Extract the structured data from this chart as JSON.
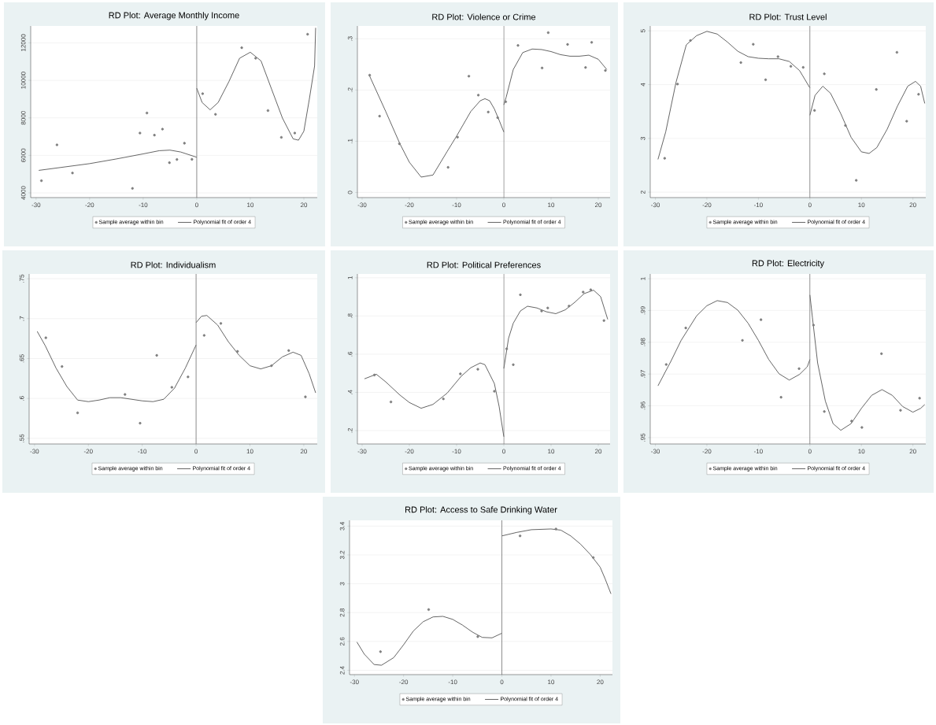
{
  "chart_data": [
    {
      "type": "scatter",
      "title": "RD Plot: Average Monthly Income",
      "xlim": [
        -31,
        22.5
      ],
      "ylim": [
        3750,
        12900
      ],
      "xticks": [
        -30,
        -20,
        -10,
        0,
        10,
        20
      ],
      "yticks": [
        4000,
        6000,
        8000,
        10000,
        12000
      ],
      "grid": "y",
      "legend": "bottom",
      "ref_lines": [
        {
          "axis": "x",
          "value": 0,
          "color": "#6e6e6e"
        }
      ],
      "series": [
        {
          "name": "Sample average within bin",
          "marker": "circle",
          "color": "#7f7f7f",
          "x": [
            -29.0,
            -26.1,
            -23.2,
            -12.0,
            -10.6,
            -9.3,
            -7.9,
            -6.4,
            -5.1,
            -3.7,
            -2.3,
            -0.9,
            1.1,
            3.5,
            8.4,
            11.0,
            13.3,
            15.8,
            18.3,
            20.7
          ],
          "values": [
            4650,
            6560,
            5060,
            4240,
            7190,
            8260,
            7080,
            7400,
            5610,
            5780,
            6650,
            5790,
            9290,
            8190,
            11740,
            11180,
            8390,
            6960,
            7190,
            12460
          ]
        },
        {
          "name": "Polynomial fit of order 4",
          "type": "line",
          "marker": "none",
          "line_style": "solid",
          "color": "#3f3f3f",
          "x": [
            -29.5,
            -20,
            -15,
            -10,
            -7,
            -5,
            -3,
            0
          ],
          "values": [
            5200,
            5560,
            5810,
            6080,
            6250,
            6280,
            6180,
            5900
          ]
        },
        {
          "type": "line",
          "marker": "none",
          "line_style": "solid",
          "color": "#3f3f3f",
          "x": [
            0,
            1,
            2.5,
            4,
            6,
            8,
            10,
            12,
            14,
            16,
            18,
            19,
            20,
            21,
            22,
            22.2
          ],
          "values": [
            9580,
            8820,
            8430,
            8820,
            9930,
            11180,
            11500,
            11040,
            9510,
            7990,
            6880,
            6810,
            7290,
            8960,
            10760,
            12800
          ]
        }
      ]
    },
    {
      "type": "scatter",
      "title": "RD Plot: Violence or Crime",
      "xlim": [
        -31,
        22.5
      ],
      "ylim": [
        -0.01,
        0.325
      ],
      "xticks": [
        -30,
        -20,
        -10,
        0,
        10,
        20
      ],
      "yticks": [
        0,
        {
          "value": 0.1,
          "label": ".1"
        },
        {
          "value": 0.2,
          "label": ".2"
        },
        {
          "value": 0.3,
          "label": ".3"
        }
      ],
      "grid": "y",
      "legend": "bottom",
      "ref_lines": [
        {
          "axis": "x",
          "value": 0,
          "color": "#6e6e6e"
        }
      ],
      "series": [
        {
          "name": "Sample average within bin",
          "marker": "circle",
          "color": "#7f7f7f",
          "x": [
            -28.4,
            -26.3,
            -22.1,
            -11.8,
            -9.8,
            -7.4,
            -5.4,
            -3.3,
            -1.3,
            0.4,
            3.0,
            8.1,
            9.4,
            13.5,
            17.3,
            18.6,
            21.5
          ],
          "values": [
            0.229,
            0.149,
            0.095,
            0.049,
            0.108,
            0.227,
            0.19,
            0.157,
            0.146,
            0.177,
            0.287,
            0.243,
            0.312,
            0.289,
            0.244,
            0.293,
            0.238
          ]
        },
        {
          "name": "Polynomial fit of order 4",
          "type": "line",
          "marker": "none",
          "line_style": "solid",
          "color": "#3f3f3f",
          "x": [
            -28.5,
            -25,
            -22,
            -20,
            -17.5,
            -15,
            -12,
            -10,
            -7,
            -5,
            -4,
            -3,
            -2,
            -1,
            0
          ],
          "values": [
            0.229,
            0.158,
            0.095,
            0.059,
            0.03,
            0.034,
            0.08,
            0.11,
            0.158,
            0.179,
            0.183,
            0.179,
            0.163,
            0.141,
            0.118
          ]
        },
        {
          "type": "line",
          "marker": "none",
          "line_style": "solid",
          "color": "#3f3f3f",
          "x": [
            0,
            0.5,
            2,
            4,
            6,
            8,
            10,
            12,
            14,
            16,
            18,
            20,
            21.8
          ],
          "values": [
            0.171,
            0.186,
            0.24,
            0.273,
            0.28,
            0.279,
            0.275,
            0.269,
            0.266,
            0.266,
            0.268,
            0.26,
            0.24
          ]
        }
      ]
    },
    {
      "type": "scatter",
      "title": "RD Plot: Trust Level",
      "xlim": [
        -31,
        22.5
      ],
      "ylim": [
        1.9,
        5.09
      ],
      "xticks": [
        -30,
        -20,
        -10,
        0,
        10,
        20
      ],
      "yticks": [
        2,
        3,
        4,
        5
      ],
      "grid": "y",
      "legend": "bottom",
      "ref_lines": [
        {
          "axis": "x",
          "value": 0,
          "color": "#6e6e6e"
        }
      ],
      "series": [
        {
          "name": "Sample average within bin",
          "marker": "circle",
          "color": "#7f7f7f",
          "x": [
            -28.2,
            -25.7,
            -23.2,
            -13.4,
            -11.0,
            -8.6,
            -6.2,
            -3.7,
            -1.3,
            0.9,
            2.8,
            6.9,
            9.0,
            12.9,
            16.9,
            18.8,
            21.1
          ],
          "values": [
            2.63,
            4.01,
            4.82,
            4.41,
            4.75,
            4.09,
            4.52,
            4.34,
            4.32,
            3.52,
            4.2,
            3.24,
            2.22,
            3.91,
            4.6,
            3.32,
            3.82
          ]
        },
        {
          "name": "Polynomial fit of order 4",
          "type": "line",
          "marker": "none",
          "line_style": "solid",
          "color": "#3f3f3f",
          "x": [
            -29.5,
            -28,
            -26,
            -24,
            -22,
            -20,
            -18,
            -16,
            -14,
            -12,
            -10,
            -8,
            -6,
            -4,
            -2,
            0
          ],
          "values": [
            2.61,
            3.12,
            4.04,
            4.74,
            4.91,
            4.99,
            4.94,
            4.79,
            4.62,
            4.52,
            4.49,
            4.48,
            4.48,
            4.43,
            4.26,
            3.94
          ]
        },
        {
          "type": "line",
          "marker": "none",
          "line_style": "solid",
          "color": "#3f3f3f",
          "x": [
            0,
            1,
            2.5,
            4,
            6,
            8,
            10,
            11.5,
            13,
            15,
            17,
            19,
            20.5,
            21.5,
            22.3
          ],
          "values": [
            3.43,
            3.8,
            3.97,
            3.84,
            3.46,
            3.02,
            2.75,
            2.72,
            2.83,
            3.17,
            3.6,
            3.97,
            4.06,
            3.97,
            3.65
          ]
        }
      ]
    },
    {
      "type": "scatter",
      "title": "RD Plot: Individualism",
      "xlim": [
        -31,
        22.5
      ],
      "ylim": [
        0.543,
        0.756
      ],
      "xticks": [
        -30,
        -20,
        -10,
        0,
        10,
        20
      ],
      "yticks": [
        {
          "value": 0.55,
          "label": ".55"
        },
        {
          "value": 0.6,
          "label": ".6"
        },
        {
          "value": 0.65,
          "label": ".65"
        },
        {
          "value": 0.7,
          "label": ".7"
        },
        {
          "value": 0.75,
          "label": ".75"
        }
      ],
      "grid": "y",
      "legend": "bottom",
      "ref_lines": [
        {
          "axis": "x",
          "value": 0,
          "color": "#6e6e6e"
        }
      ],
      "series": [
        {
          "name": "Sample average within bin",
          "marker": "circle",
          "color": "#7f7f7f",
          "x": [
            -27.9,
            -24.9,
            -22.0,
            -13.2,
            -10.4,
            -7.3,
            -4.5,
            -1.5,
            1.5,
            4.6,
            7.7,
            14.0,
            17.2,
            20.3
          ],
          "values": [
            0.676,
            0.64,
            0.582,
            0.605,
            0.569,
            0.654,
            0.614,
            0.627,
            0.679,
            0.694,
            0.659,
            0.641,
            0.66,
            0.602
          ]
        },
        {
          "name": "Polynomial fit of order 4",
          "type": "line",
          "marker": "none",
          "line_style": "solid",
          "color": "#3f3f3f",
          "x": [
            -29.5,
            -28,
            -26,
            -24,
            -22,
            -20,
            -18,
            -16,
            -14,
            -12,
            -10,
            -8,
            -6,
            -4,
            -2,
            0
          ],
          "values": [
            0.684,
            0.666,
            0.638,
            0.615,
            0.598,
            0.596,
            0.598,
            0.601,
            0.601,
            0.599,
            0.597,
            0.596,
            0.599,
            0.613,
            0.638,
            0.667
          ]
        },
        {
          "type": "line",
          "marker": "none",
          "line_style": "solid",
          "color": "#3f3f3f",
          "x": [
            0,
            1,
            2,
            4,
            6,
            8,
            10,
            12,
            14,
            16,
            18,
            19.5,
            21,
            22.2
          ],
          "values": [
            0.695,
            0.703,
            0.704,
            0.692,
            0.671,
            0.654,
            0.641,
            0.637,
            0.641,
            0.652,
            0.658,
            0.654,
            0.631,
            0.607
          ]
        }
      ]
    },
    {
      "type": "scatter",
      "title": "RD Plot: Political Preferences",
      "xlim": [
        -31,
        22.5
      ],
      "ylim": [
        0.13,
        1.02
      ],
      "xticks": [
        -30,
        -20,
        -10,
        0,
        10,
        20
      ],
      "yticks": [
        {
          "value": 0.2,
          "label": ".2"
        },
        {
          "value": 0.4,
          "label": ".4"
        },
        {
          "value": 0.6,
          "label": ".6"
        },
        {
          "value": 0.8,
          "label": ".8"
        },
        1
      ],
      "grid": "y",
      "legend": "bottom",
      "ref_lines": [
        {
          "axis": "x",
          "value": 0,
          "color": "#6e6e6e"
        }
      ],
      "series": [
        {
          "name": "Sample average within bin",
          "marker": "circle",
          "color": "#7f7f7f",
          "x": [
            -27.4,
            -23.9,
            -12.8,
            -9.2,
            -5.5,
            -2.0,
            0.6,
            2.0,
            3.5,
            8.0,
            9.3,
            13.8,
            16.8,
            18.4,
            21.2
          ],
          "values": [
            0.491,
            0.35,
            0.366,
            0.497,
            0.521,
            0.406,
            0.628,
            0.545,
            0.911,
            0.826,
            0.842,
            0.852,
            0.925,
            0.937,
            0.776
          ]
        },
        {
          "name": "Polynomial fit of order 4",
          "type": "line",
          "marker": "none",
          "line_style": "solid",
          "color": "#3f3f3f",
          "x": [
            -29.5,
            -27,
            -25,
            -22,
            -20,
            -17.5,
            -15,
            -12,
            -9,
            -7,
            -5,
            -4,
            -2,
            -1,
            0
          ],
          "values": [
            0.471,
            0.495,
            0.455,
            0.386,
            0.347,
            0.317,
            0.337,
            0.396,
            0.485,
            0.529,
            0.554,
            0.545,
            0.446,
            0.327,
            0.168
          ]
        },
        {
          "type": "line",
          "marker": "none",
          "line_style": "solid",
          "color": "#3f3f3f",
          "x": [
            0,
            1,
            2,
            3.5,
            5,
            7,
            9,
            11,
            13,
            15,
            17,
            19,
            20.5,
            22
          ],
          "values": [
            0.525,
            0.683,
            0.762,
            0.826,
            0.851,
            0.842,
            0.822,
            0.812,
            0.832,
            0.871,
            0.917,
            0.935,
            0.901,
            0.782
          ]
        }
      ]
    },
    {
      "type": "scatter",
      "title": "RD Plot: Electricity",
      "xlim": [
        -31,
        22.5
      ],
      "ylim": [
        0.948,
        1.0015
      ],
      "xticks": [
        -30,
        -20,
        -10,
        0,
        10,
        20
      ],
      "yticks": [
        {
          "value": 0.95,
          "label": ".95"
        },
        {
          "value": 0.96,
          "label": ".96"
        },
        {
          "value": 0.97,
          "label": ".97"
        },
        {
          "value": 0.98,
          "label": ".98"
        },
        {
          "value": 0.99,
          "label": ".99"
        },
        1
      ],
      "grid": "y",
      "legend": "bottom",
      "ref_lines": [
        {
          "axis": "x",
          "value": 0,
          "color": "#6e6e6e"
        }
      ],
      "series": [
        {
          "name": "Sample average within bin",
          "marker": "circle",
          "color": "#7f7f7f",
          "x": [
            -27.9,
            -24.1,
            -13.1,
            -9.5,
            -5.6,
            -2.1,
            0.7,
            2.8,
            8.1,
            10.1,
            13.9,
            17.6,
            21.3
          ],
          "values": [
            0.973,
            0.9845,
            0.9806,
            0.9871,
            0.9627,
            0.9717,
            0.9854,
            0.9582,
            0.9552,
            0.9532,
            0.9764,
            0.9586,
            0.9624
          ]
        },
        {
          "name": "Polynomial fit of order 4",
          "type": "line",
          "marker": "none",
          "line_style": "solid",
          "color": "#3f3f3f",
          "x": [
            -29.5,
            -27,
            -25,
            -22,
            -20,
            -18,
            -16,
            -14,
            -12,
            -10,
            -8,
            -6,
            -4,
            -2,
            -0.5,
            0
          ],
          "values": [
            0.9663,
            0.974,
            0.9806,
            0.9883,
            0.9915,
            0.9931,
            0.9925,
            0.9901,
            0.986,
            0.9806,
            0.9746,
            0.9701,
            0.9681,
            0.9699,
            0.9723,
            0.9746
          ]
        },
        {
          "type": "line",
          "marker": "none",
          "line_style": "solid",
          "color": "#3f3f3f",
          "x": [
            0,
            0.5,
            1.5,
            3,
            4.5,
            6,
            8,
            10,
            12,
            14,
            16,
            18,
            20,
            21.5,
            22.3
          ],
          "values": [
            0.9949,
            0.9877,
            0.9735,
            0.9615,
            0.9544,
            0.9523,
            0.9544,
            0.9592,
            0.9633,
            0.9651,
            0.9633,
            0.9598,
            0.958,
            0.9592,
            0.9604
          ]
        }
      ]
    },
    {
      "type": "scatter",
      "title": "RD Plot: Access to Safe Drinking Water",
      "xlim": [
        -31,
        22.5
      ],
      "ylim": [
        2.37,
        3.44
      ],
      "xticks": [
        -30,
        -20,
        -10,
        0,
        10,
        20
      ],
      "yticks": [
        2.4,
        2.6,
        2.8,
        3,
        3.2,
        3.4
      ],
      "grid": "y",
      "legend": "bottom",
      "ref_lines": [
        {
          "axis": "x",
          "value": 0,
          "color": "#6e6e6e"
        }
      ],
      "series": [
        {
          "name": "Sample average within bin",
          "marker": "circle",
          "color": "#7f7f7f",
          "x": [
            -24.7,
            -14.9,
            -4.9,
            3.7,
            11.0,
            18.6
          ],
          "values": [
            2.529,
            2.821,
            2.633,
            3.332,
            3.38,
            3.182
          ]
        },
        {
          "name": "Polynomial fit of order 4",
          "type": "line",
          "marker": "none",
          "line_style": "solid",
          "color": "#3f3f3f",
          "x": [
            -29.5,
            -28,
            -26,
            -24.5,
            -22,
            -20,
            -18,
            -16,
            -14,
            -12,
            -10,
            -8,
            -6,
            -4,
            -2,
            0
          ],
          "values": [
            2.596,
            2.512,
            2.44,
            2.435,
            2.488,
            2.577,
            2.673,
            2.737,
            2.77,
            2.774,
            2.753,
            2.713,
            2.665,
            2.628,
            2.625,
            2.657
          ]
        },
        {
          "type": "line",
          "marker": "none",
          "line_style": "solid",
          "color": "#3f3f3f",
          "x": [
            0,
            3,
            6,
            10,
            12,
            14,
            16,
            18,
            20,
            21,
            22.2
          ],
          "values": [
            3.332,
            3.356,
            3.375,
            3.38,
            3.372,
            3.332,
            3.275,
            3.203,
            3.115,
            3.035,
            2.93
          ]
        }
      ]
    }
  ]
}
